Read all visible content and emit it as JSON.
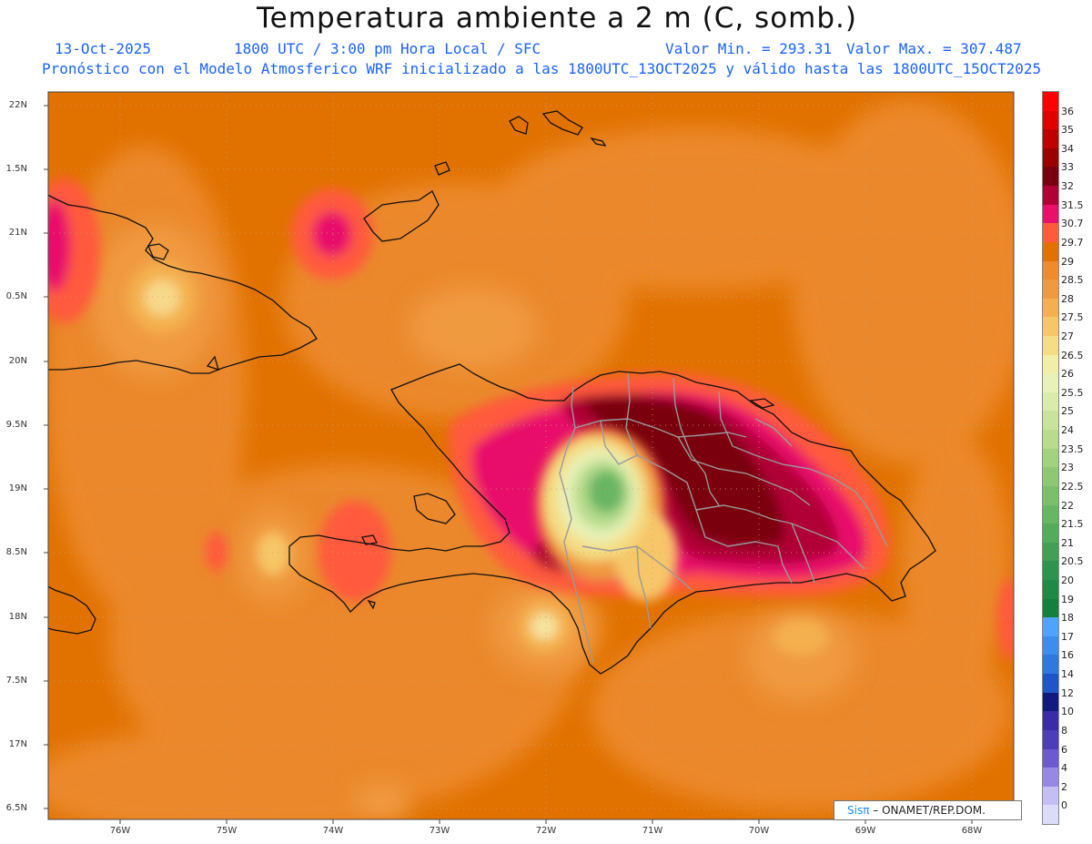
{
  "header": {
    "title": "Temperatura ambiente a 2 m (C, somb.)",
    "date": "13-Oct-2025",
    "time": "1800 UTC / 3:00 pm Hora Local / SFC",
    "min": "Valor Min. = 293.31",
    "max": "Valor Max. = 307.487",
    "forecast": "Pronóstico con el Modelo Atmosferico WRF inicializado a las 1800UTC_13OCT2025 y válido hasta las  1800UTC_15OCT2025"
  },
  "axes": {
    "lat_labels": [
      "22N",
      "1.5N",
      "21N",
      "0.5N",
      "20N",
      "9.5N",
      "19N",
      "8.5N",
      "18N",
      "7.5N",
      "17N",
      "6.5N"
    ],
    "lon_labels": [
      "76W",
      "75W",
      "74W",
      "73W",
      "72W",
      "71W",
      "70W",
      "69W",
      "68W"
    ]
  },
  "colorbar": {
    "labels": [
      "36",
      "35",
      "34",
      "33",
      "32",
      "31.5",
      "30.7",
      "29.7",
      "29",
      "28.5",
      "28",
      "27.5",
      "27",
      "26.5",
      "26",
      "25.5",
      "25",
      "24",
      "23.5",
      "23",
      "22.5",
      "22",
      "21.5",
      "21",
      "20.5",
      "20",
      "19",
      "18",
      "17",
      "16",
      "14",
      "12",
      "10",
      "8",
      "6",
      "4",
      "2",
      "0"
    ],
    "colors": [
      "#ff0000",
      "#e00000",
      "#c00000",
      "#9a0000",
      "#7a0010",
      "#b00035",
      "#e8106a",
      "#ff5a3c",
      "#e17200",
      "#ef8a2d",
      "#f09a3f",
      "#f4b04e",
      "#f6c667",
      "#f5dd84",
      "#f2eea8",
      "#e8f1b8",
      "#d9ecac",
      "#c8e49c",
      "#b6dc8c",
      "#a2d27e",
      "#8fc874",
      "#7bbf6c",
      "#68b564",
      "#55ab5c",
      "#429f55",
      "#2e944d",
      "#1e8a45",
      "#15803d",
      "#4da3ff",
      "#3b8ef0",
      "#2f78e0",
      "#1f55c8",
      "#101a80",
      "#3a2ca8",
      "#4e3db8",
      "#6d5ad0",
      "#9888e6",
      "#c4bff2",
      "#dcdcfa"
    ]
  },
  "credit": {
    "brand": "Sisπ",
    "org": "– ONAMET/REP.DOM."
  }
}
